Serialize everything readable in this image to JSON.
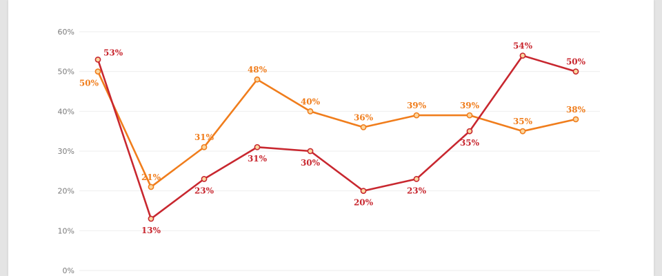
{
  "chart_data": {
    "type": "line",
    "title": "",
    "xlabel": "",
    "ylabel": "",
    "ylim": [
      0,
      60
    ],
    "y_ticks": [
      0,
      10,
      20,
      30,
      40,
      50,
      60
    ],
    "y_tick_format": "{v}%",
    "grid": true,
    "legend": "none",
    "x": [
      1,
      2,
      3,
      4,
      5,
      6,
      7,
      8,
      9,
      10
    ],
    "series": [
      {
        "color": "#f07d1c",
        "values": [
          50,
          21,
          31,
          48,
          40,
          36,
          39,
          39,
          35,
          38
        ],
        "labels": [
          "50%",
          "21%",
          "31%",
          "48%",
          "40%",
          "36%",
          "39%",
          "39%",
          "35%",
          "38%"
        ],
        "label_placement": [
          "below-left",
          "above",
          "above",
          "above",
          "above",
          "above",
          "above",
          "above",
          "above",
          "above"
        ]
      },
      {
        "color": "#c8272f",
        "values": [
          53,
          13,
          23,
          31,
          30,
          20,
          23,
          35,
          54,
          50
        ],
        "labels": [
          "53%",
          "13%",
          "23%",
          "31%",
          "30%",
          "20%",
          "23%",
          "35%",
          "54%",
          "50%"
        ],
        "label_placement": [
          "right",
          "below",
          "below",
          "below",
          "below",
          "below",
          "below",
          "below",
          "above",
          "above"
        ]
      }
    ]
  },
  "colors": {
    "grid": "#eeeeee",
    "tick_text": "#7a7a7a",
    "marker_fill": "#fbd7a0"
  }
}
